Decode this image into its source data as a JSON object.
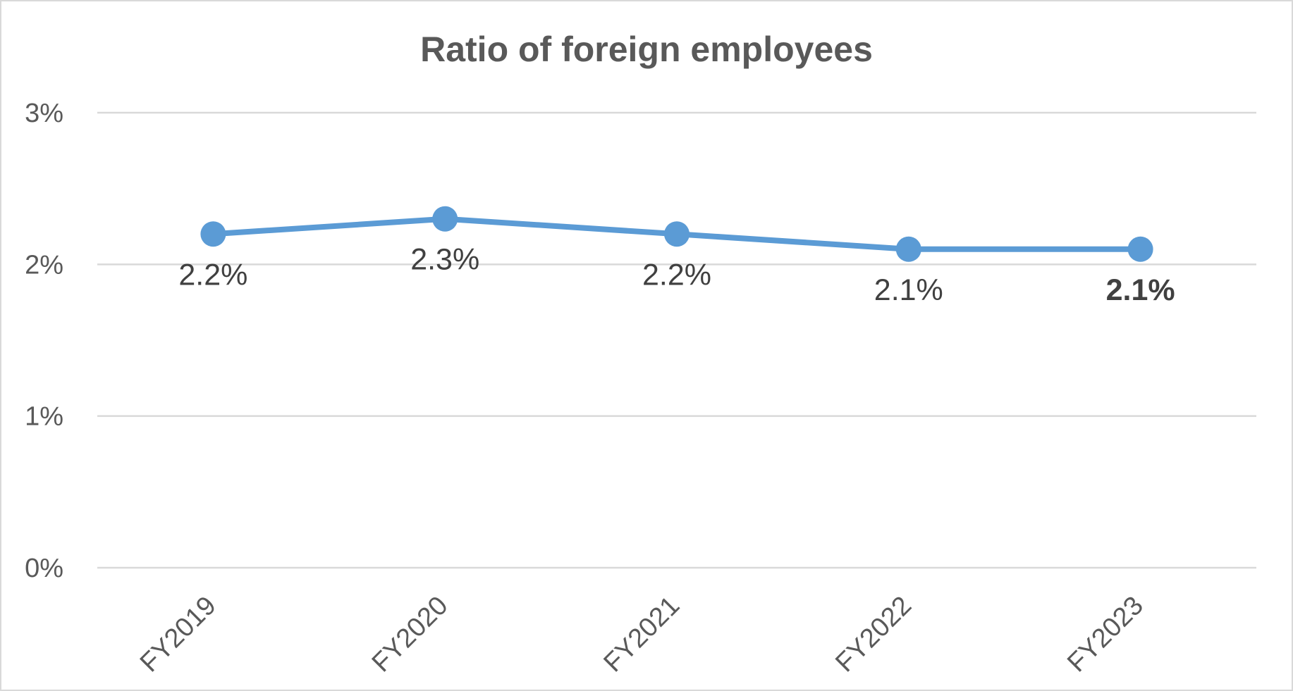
{
  "chart_data": {
    "type": "line",
    "title": "Ratio of foreign employees",
    "categories": [
      "FY2019",
      "FY2020",
      "FY2021",
      "FY2022",
      "FY2023"
    ],
    "values": [
      2.2,
      2.3,
      2.2,
      2.1,
      2.1
    ],
    "data_labels": [
      "2.2%",
      "2.3%",
      "2.2%",
      "2.1%",
      "2.1%"
    ],
    "data_labels_bold": [
      false,
      false,
      false,
      false,
      true
    ],
    "y_ticks": [
      {
        "value": 0,
        "label": "0%"
      },
      {
        "value": 1,
        "label": "1%"
      },
      {
        "value": 2,
        "label": "2%"
      },
      {
        "value": 3,
        "label": "3%"
      }
    ],
    "ylim": [
      0,
      3
    ],
    "grid": true,
    "legend": "none",
    "series_color": "#5b9bd5",
    "xlabel": "",
    "ylabel": ""
  }
}
